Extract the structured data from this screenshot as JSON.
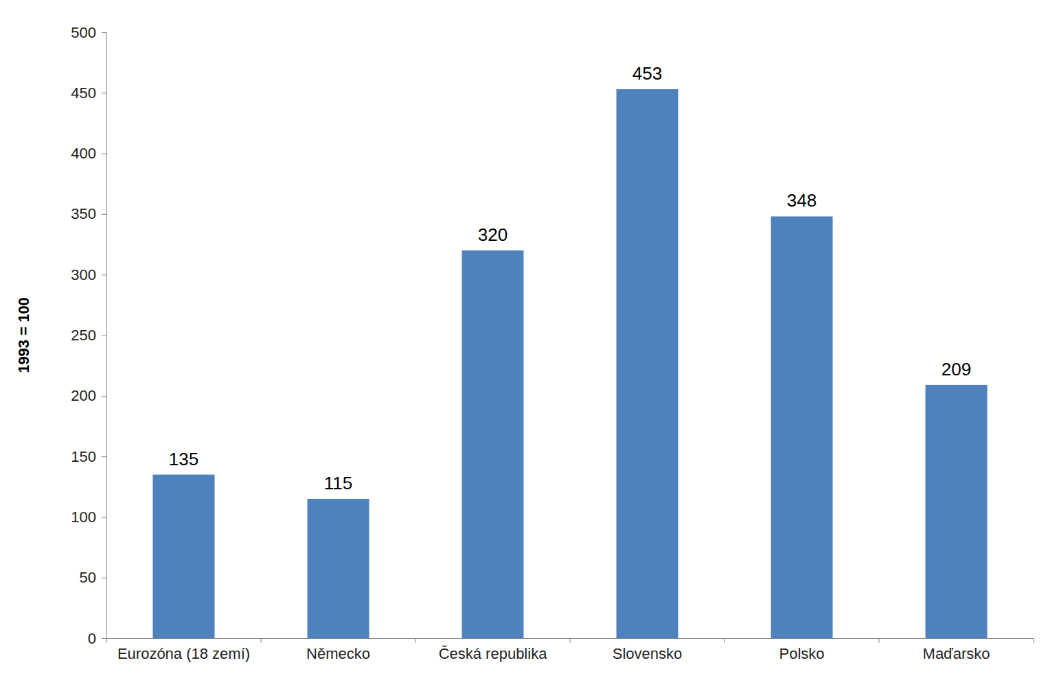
{
  "chart_data": {
    "type": "bar",
    "y_label": "1993 = 100",
    "categories": [
      "Eurozóna (18 zemí)",
      "Německo",
      "Česká republika",
      "Slovensko",
      "Polsko",
      "Maďarsko"
    ],
    "values": [
      135,
      115,
      320,
      453,
      348,
      209
    ],
    "color": "#4f81bd",
    "ylim": [
      0,
      500
    ],
    "yticks": [
      0,
      50,
      100,
      150,
      200,
      250,
      300,
      350,
      400,
      450,
      500
    ],
    "grid": false,
    "data_labels": true
  }
}
